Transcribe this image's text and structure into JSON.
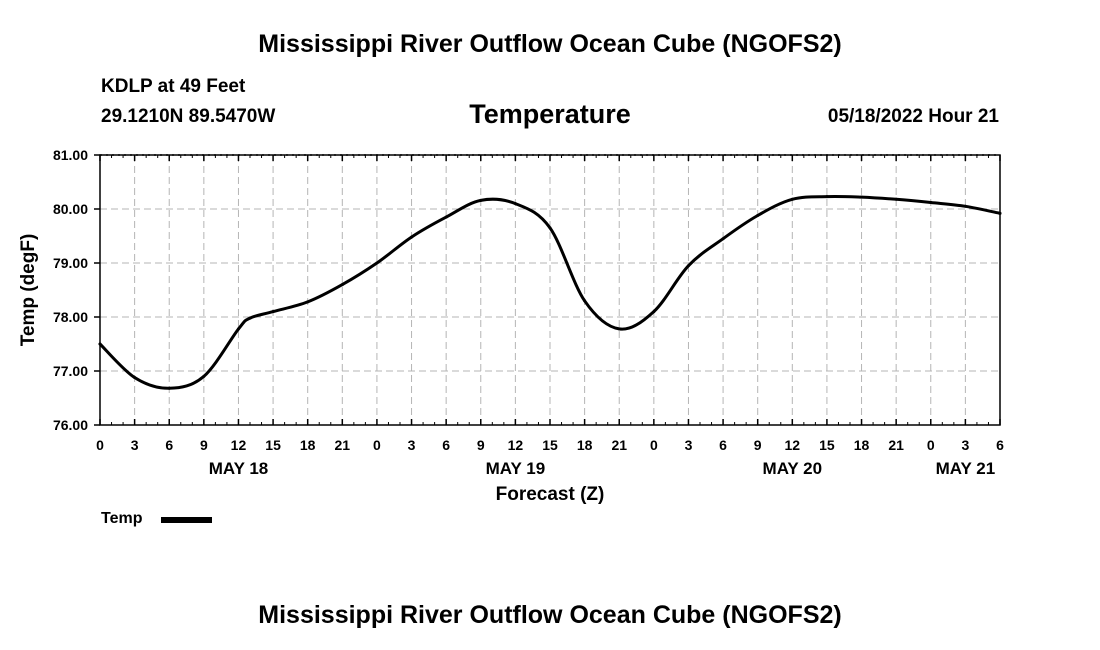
{
  "page_title": "Mississippi River Outflow Ocean Cube (NGOFS2)",
  "footer_title": "Mississippi River Outflow Ocean Cube (NGOFS2)",
  "station": "KDLP at 49 Feet",
  "coords": "29.1210N  89.5470W",
  "timestamp": "05/18/2022 Hour 21",
  "colors": {
    "line": "#000000",
    "grid": "#b5b5b5",
    "background": "#ffffff"
  },
  "legend": {
    "label": "Temp"
  },
  "chart_data": {
    "type": "line",
    "title": "Temperature",
    "xlabel": "Forecast (Z)",
    "ylabel": "Temp (degF)",
    "ylim": [
      76.0,
      81.0
    ],
    "yticks": [
      76.0,
      77.0,
      78.0,
      79.0,
      80.0,
      81.0
    ],
    "ytick_labels": [
      "76.00",
      "77.00",
      "78.00",
      "79.00",
      "80.00",
      "81.00"
    ],
    "xlim": [
      0,
      78
    ],
    "xtick_labels": [
      "0",
      "3",
      "6",
      "9",
      "12",
      "15",
      "18",
      "21",
      "0",
      "3",
      "6",
      "9",
      "12",
      "15",
      "18",
      "21",
      "0",
      "3",
      "6",
      "9",
      "12",
      "15",
      "18",
      "21",
      "0",
      "3",
      "6"
    ],
    "date_labels": [
      {
        "label": "MAY 18",
        "hour": 12
      },
      {
        "label": "MAY 19",
        "hour": 36
      },
      {
        "label": "MAY 20",
        "hour": 60
      },
      {
        "label": "MAY 21",
        "hour": 75
      }
    ],
    "series": [
      {
        "name": "Temp",
        "x": [
          0,
          3,
          6,
          9,
          12,
          13,
          15,
          18,
          21,
          24,
          27,
          30,
          33,
          36,
          39,
          42,
          45,
          48,
          51,
          54,
          57,
          60,
          63,
          66,
          69,
          72,
          75,
          78
        ],
        "values": [
          77.5,
          76.88,
          76.68,
          76.9,
          77.78,
          77.98,
          78.1,
          78.28,
          78.6,
          79.0,
          79.48,
          79.85,
          80.16,
          80.1,
          79.65,
          78.3,
          77.78,
          78.1,
          78.95,
          79.45,
          79.88,
          80.18,
          80.23,
          80.22,
          80.18,
          80.12,
          80.05,
          79.92
        ]
      }
    ]
  }
}
